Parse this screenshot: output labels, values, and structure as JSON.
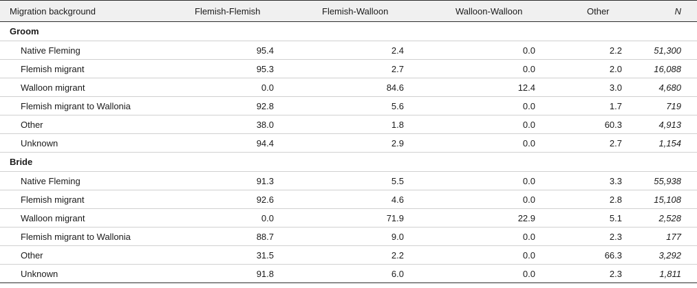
{
  "header": {
    "migration_background": "Migration background",
    "flemish_flemish": "Flemish-Flemish",
    "flemish_walloon": "Flemish-Walloon",
    "walloon_walloon": "Walloon-Walloon",
    "other": "Other",
    "n": "N"
  },
  "sections": [
    {
      "title": "Groom",
      "rows": [
        {
          "label": "Native Fleming",
          "ff": "95.4",
          "fw": "2.4",
          "ww": "0.0",
          "other": "2.2",
          "n": "51,300"
        },
        {
          "label": "Flemish migrant",
          "ff": "95.3",
          "fw": "2.7",
          "ww": "0.0",
          "other": "2.0",
          "n": "16,088"
        },
        {
          "label": "Walloon migrant",
          "ff": "0.0",
          "fw": "84.6",
          "ww": "12.4",
          "other": "3.0",
          "n": "4,680"
        },
        {
          "label": "Flemish migrant to Wallonia",
          "ff": "92.8",
          "fw": "5.6",
          "ww": "0.0",
          "other": "1.7",
          "n": "719"
        },
        {
          "label": "Other",
          "ff": "38.0",
          "fw": "1.8",
          "ww": "0.0",
          "other": "60.3",
          "n": "4,913"
        },
        {
          "label": "Unknown",
          "ff": "94.4",
          "fw": "2.9",
          "ww": "0.0",
          "other": "2.7",
          "n": "1,154"
        }
      ]
    },
    {
      "title": "Bride",
      "rows": [
        {
          "label": "Native Fleming",
          "ff": "91.3",
          "fw": "5.5",
          "ww": "0.0",
          "other": "3.3",
          "n": "55,938"
        },
        {
          "label": "Flemish migrant",
          "ff": "92.6",
          "fw": "4.6",
          "ww": "0.0",
          "other": "2.8",
          "n": "15,108"
        },
        {
          "label": "Walloon migrant",
          "ff": "0.0",
          "fw": "71.9",
          "ww": "22.9",
          "other": "5.1",
          "n": "2,528"
        },
        {
          "label": "Flemish migrant to Wallonia",
          "ff": "88.7",
          "fw": "9.0",
          "ww": "0.0",
          "other": "2.3",
          "n": "177"
        },
        {
          "label": "Other",
          "ff": "31.5",
          "fw": "2.2",
          "ww": "0.0",
          "other": "66.3",
          "n": "3,292"
        },
        {
          "label": "Unknown",
          "ff": "91.8",
          "fw": "6.0",
          "ww": "0.0",
          "other": "2.3",
          "n": "1,811"
        }
      ]
    }
  ]
}
